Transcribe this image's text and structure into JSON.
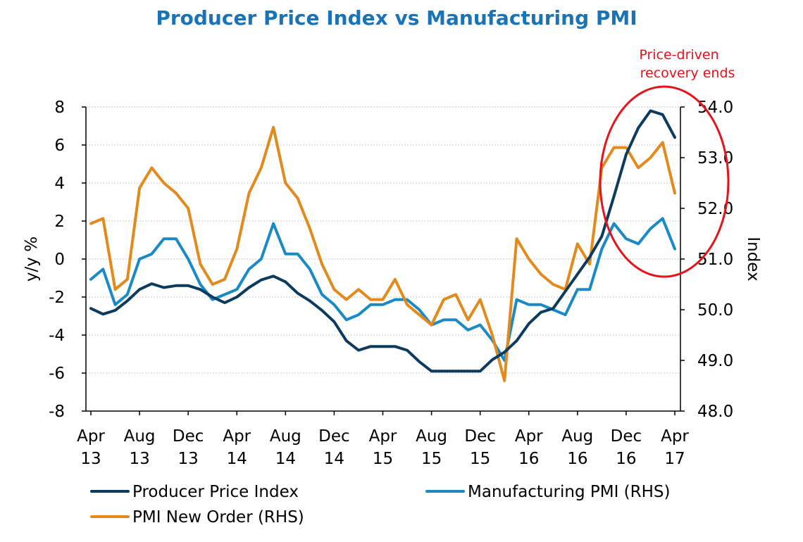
{
  "chart_data": {
    "type": "line",
    "title": "Producer Price Index vs Manufacturing PMI",
    "ylabel": "y/y %",
    "y2label": "Index",
    "ylim": [
      -8,
      8
    ],
    "y2lim": [
      48.0,
      54.0
    ],
    "yticks": [
      "8",
      "6",
      "4",
      "2",
      "0",
      "-2",
      "-4",
      "-6",
      "-8"
    ],
    "y2ticks": [
      "54.0",
      "53.0",
      "52.0",
      "51.0",
      "50.0",
      "49.0",
      "48.0"
    ],
    "xticks": [
      {
        "line1": "Apr",
        "line2": "13"
      },
      {
        "line1": "Aug",
        "line2": "13"
      },
      {
        "line1": "Dec",
        "line2": "13"
      },
      {
        "line1": "Apr",
        "line2": "14"
      },
      {
        "line1": "Aug",
        "line2": "14"
      },
      {
        "line1": "Dec",
        "line2": "14"
      },
      {
        "line1": "Apr",
        "line2": "15"
      },
      {
        "line1": "Aug",
        "line2": "15"
      },
      {
        "line1": "Dec",
        "line2": "15"
      },
      {
        "line1": "Apr",
        "line2": "16"
      },
      {
        "line1": "Aug",
        "line2": "16"
      },
      {
        "line1": "Dec",
        "line2": "16"
      },
      {
        "line1": "Apr",
        "line2": "17"
      }
    ],
    "series": [
      {
        "name": "Producer Price Index",
        "axis": "left",
        "color": "#0d3b5e",
        "values": [
          -2.6,
          -2.9,
          -2.7,
          -2.2,
          -1.6,
          -1.3,
          -1.5,
          -1.4,
          -1.4,
          -1.6,
          -2.0,
          -2.3,
          -2.0,
          -1.5,
          -1.1,
          -0.9,
          -1.2,
          -1.8,
          -2.2,
          -2.7,
          -3.3,
          -4.3,
          -4.8,
          -4.6,
          -4.6,
          -4.6,
          -4.8,
          -5.4,
          -5.9,
          -5.9,
          -5.9,
          -5.9,
          -5.9,
          -5.3,
          -4.9,
          -4.3,
          -3.4,
          -2.8,
          -2.6,
          -1.7,
          -0.8,
          0.1,
          1.2,
          3.3,
          5.5,
          6.9,
          7.8,
          7.6,
          6.4
        ]
      },
      {
        "name": "Manufacturing PMI (RHS)",
        "axis": "right",
        "color": "#1a8ac6",
        "values": [
          50.6,
          50.8,
          50.1,
          50.3,
          51.0,
          51.1,
          51.4,
          51.4,
          51.0,
          50.5,
          50.2,
          50.3,
          50.4,
          50.8,
          51.0,
          51.7,
          51.1,
          51.1,
          50.8,
          50.3,
          50.1,
          49.8,
          49.9,
          50.1,
          50.1,
          50.2,
          50.2,
          50.0,
          49.7,
          49.8,
          49.8,
          49.6,
          49.7,
          49.4,
          49.0,
          50.2,
          50.1,
          50.1,
          50.0,
          49.9,
          50.4,
          50.4,
          51.2,
          51.7,
          51.4,
          51.3,
          51.6,
          51.8,
          51.2
        ]
      },
      {
        "name": "PMI New Order (RHS)",
        "axis": "right",
        "color": "#e38a1c",
        "values": [
          51.7,
          51.8,
          50.4,
          50.6,
          52.4,
          52.8,
          52.5,
          52.3,
          52.0,
          50.9,
          50.5,
          50.6,
          51.2,
          52.3,
          52.8,
          53.6,
          52.5,
          52.2,
          51.6,
          50.9,
          50.4,
          50.2,
          50.4,
          50.2,
          50.2,
          50.6,
          50.1,
          49.9,
          49.7,
          50.2,
          50.3,
          49.8,
          50.2,
          49.5,
          48.6,
          51.4,
          51.0,
          50.7,
          50.5,
          50.4,
          51.3,
          50.9,
          52.8,
          53.2,
          53.2,
          52.8,
          53.0,
          53.3,
          52.3
        ]
      }
    ],
    "legend": [
      "Producer Price Index",
      "Manufacturing PMI (RHS)",
      "PMI New Order (RHS)"
    ],
    "annotation": {
      "line1": "Price-driven",
      "line2": "recovery ends",
      "color": "#e8121b"
    }
  }
}
